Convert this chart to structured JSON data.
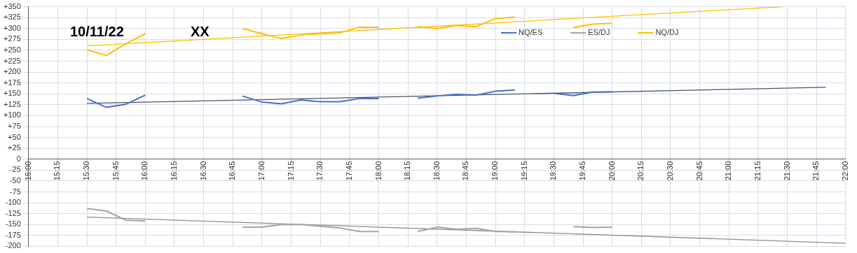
{
  "chart_data": {
    "type": "line",
    "annotations": [
      "10/11/22",
      "XX"
    ],
    "x": [
      15.5,
      15.667,
      15.833,
      16,
      16.167,
      16.333,
      16.5,
      16.667,
      16.833,
      17,
      17.167,
      17.333,
      17.5,
      17.667,
      17.833,
      18,
      18.167,
      18.333,
      18.5,
      18.667,
      18.833,
      19,
      19.167,
      19.333,
      19.5,
      19.667,
      19.833,
      20
    ],
    "series": [
      {
        "name": "NQ/ES",
        "color": "#4472c4",
        "values": [
          139,
          119,
          126,
          147,
          null,
          null,
          null,
          null,
          145,
          131,
          127,
          136,
          132,
          132,
          139,
          139,
          null,
          140,
          145,
          149,
          147,
          156,
          159,
          null,
          151,
          146,
          154,
          155
        ]
      },
      {
        "name": "ES/DJ",
        "color": "#a5a5a5",
        "values": [
          -113,
          -119,
          -140,
          -142,
          null,
          null,
          null,
          null,
          -156,
          -156,
          -150,
          -150,
          -154,
          -158,
          -166,
          -166,
          null,
          -166,
          -156,
          -161,
          -159,
          -166,
          -167,
          null,
          null,
          -155,
          -157,
          -156
        ]
      },
      {
        "name": "NQ/DJ",
        "color": "#ffc000",
        "values": [
          251,
          238,
          265,
          288,
          null,
          null,
          null,
          null,
          300,
          288,
          277,
          285,
          288,
          290,
          303,
          303,
          null,
          304,
          300,
          307,
          304,
          323,
          326,
          null,
          null,
          302,
          310,
          312
        ]
      },
      {
        "type": "line",
        "color": "#44546a",
        "x": [
          15.5,
          21.83
        ],
        "values": [
          128,
          165
        ]
      },
      {
        "type": "line",
        "color": "#8c8c8c",
        "x": [
          15.5,
          22
        ],
        "values": [
          -133,
          -193
        ]
      },
      {
        "type": "line",
        "color": "#ffc000",
        "x": [
          15.5,
          21.46
        ],
        "values": [
          260,
          350
        ]
      }
    ],
    "xlim": [
      15,
      22
    ],
    "xticks": [
      {
        "value": 15,
        "label": "15:00"
      },
      {
        "value": 15.25,
        "label": "15:15"
      },
      {
        "value": 15.5,
        "label": "15:30"
      },
      {
        "value": 15.75,
        "label": "15:45"
      },
      {
        "value": 16,
        "label": "16:00"
      },
      {
        "value": 16.25,
        "label": "16:15"
      },
      {
        "value": 16.5,
        "label": "16:30"
      },
      {
        "value": 16.75,
        "label": "16:45"
      },
      {
        "value": 17,
        "label": "17:00"
      },
      {
        "value": 17.25,
        "label": "17:15"
      },
      {
        "value": 17.5,
        "label": "17:30"
      },
      {
        "value": 17.75,
        "label": "17:45"
      },
      {
        "value": 18,
        "label": "18:00"
      },
      {
        "value": 18.25,
        "label": "18:15"
      },
      {
        "value": 18.5,
        "label": "18:30"
      },
      {
        "value": 18.75,
        "label": "18:45"
      },
      {
        "value": 19,
        "label": "19:00"
      },
      {
        "value": 19.25,
        "label": "19:15"
      },
      {
        "value": 19.5,
        "label": "19:30"
      },
      {
        "value": 19.75,
        "label": "19:45"
      },
      {
        "value": 20,
        "label": "20:00"
      },
      {
        "value": 20.25,
        "label": "20:15"
      },
      {
        "value": 20.5,
        "label": "20:30"
      },
      {
        "value": 20.75,
        "label": "20:45"
      },
      {
        "value": 21,
        "label": "21:00"
      },
      {
        "value": 21.25,
        "label": "21:15"
      },
      {
        "value": 21.5,
        "label": "21:30"
      },
      {
        "value": 21.75,
        "label": "21:45"
      },
      {
        "value": 22,
        "label": "22:00"
      }
    ],
    "ylim": [
      -200,
      350
    ],
    "yticks": [
      -200,
      -175,
      -150,
      -125,
      -100,
      -75,
      -50,
      -25,
      0,
      {
        "value": 25,
        "label": "+25"
      },
      {
        "value": 50,
        "label": "+50"
      },
      {
        "value": 75,
        "label": "+75"
      },
      {
        "value": 100,
        "label": "+100"
      },
      {
        "value": 125,
        "label": "+125"
      },
      {
        "value": 150,
        "label": "+150"
      },
      {
        "value": 175,
        "label": "+175"
      },
      {
        "value": 200,
        "label": "+200"
      },
      {
        "value": 225,
        "label": "+225"
      },
      {
        "value": 250,
        "label": "+250"
      },
      {
        "value": 275,
        "label": "+275"
      },
      {
        "value": 300,
        "label": "+300"
      },
      {
        "value": 325,
        "label": "+325"
      },
      {
        "value": 350,
        "label": "+350"
      }
    ],
    "grid": true,
    "legend": "top right",
    "marker": "none",
    "line_style": "solid"
  }
}
